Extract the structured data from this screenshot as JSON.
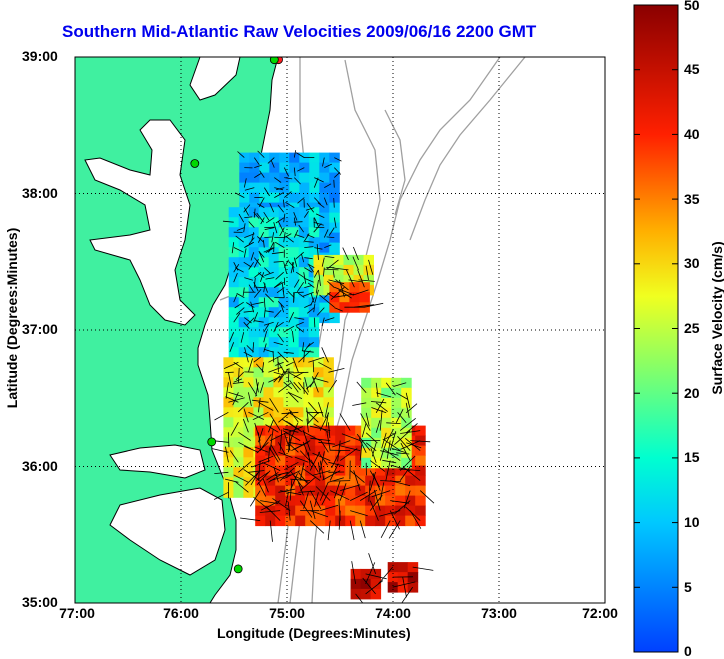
{
  "title": "Southern Mid-Atlantic Raw Velocities 2009/06/16 2200 GMT",
  "x_axis": {
    "label": "Longitude (Degrees:Minutes)",
    "ticks": [
      "77:00",
      "76:00",
      "75:00",
      "74:00",
      "73:00",
      "72:00"
    ]
  },
  "y_axis": {
    "label": "Latitude (Degrees:Minutes)",
    "ticks": [
      "39:00",
      "38:00",
      "37:00",
      "36:00",
      "35:00"
    ]
  },
  "colorbar": {
    "label": "Surface Velocity (cm/s)",
    "ticks": [
      "50",
      "45",
      "40",
      "35",
      "30",
      "25",
      "20",
      "15",
      "10",
      "5",
      "0"
    ],
    "min": 0,
    "max": 50
  },
  "map_extent": {
    "lon": [
      -77,
      -72
    ],
    "lat": [
      35,
      39
    ]
  },
  "colors": {
    "land": "#40f0a0",
    "coastline": "#000000",
    "bathymetry": "#a0a0a0",
    "title": "#0000ee",
    "sites": "#00d800",
    "site_inactive": "#ff2020"
  },
  "sites": [
    {
      "name": "site",
      "lon": -75.87,
      "lat": 38.22,
      "status": "active"
    },
    {
      "name": "site",
      "lon": -75.71,
      "lat": 36.18,
      "status": "active"
    },
    {
      "name": "site",
      "lon": -75.46,
      "lat": 35.25,
      "status": "active"
    },
    {
      "name": "site",
      "lon": -75.08,
      "lat": 38.98,
      "status": "inactive"
    },
    {
      "name": "site",
      "lon": -75.12,
      "lat": 38.98,
      "status": "active"
    }
  ],
  "chart_data": {
    "type": "heatmap",
    "title": "Southern Mid-Atlantic Raw Velocities 2009/06/16 2200 GMT",
    "xlabel": "Longitude (Degrees:Minutes)",
    "ylabel": "Latitude (Degrees:Minutes)",
    "colorbar_label": "Surface Velocity (cm/s)",
    "xlim": [
      -77,
      -72
    ],
    "ylim": [
      35,
      39
    ],
    "clim": [
      0,
      50
    ],
    "grid": true,
    "regions": [
      {
        "lon": [
          -75.45,
          -74.6
        ],
        "lat": [
          37.1,
          38.3
        ],
        "speed": 9
      },
      {
        "lon": [
          -75.55,
          -74.75
        ],
        "lat": [
          36.6,
          37.9
        ],
        "speed": 12
      },
      {
        "lon": [
          -74.75,
          -74.25
        ],
        "lat": [
          37.3,
          37.55
        ],
        "speed": 26
      },
      {
        "lon": [
          -74.6,
          -74.25
        ],
        "lat": [
          37.2,
          37.35
        ],
        "speed": 38
      },
      {
        "lon": [
          -75.6,
          -74.6
        ],
        "lat": [
          35.8,
          36.8
        ],
        "speed": 27
      },
      {
        "lon": [
          -75.3,
          -73.75
        ],
        "lat": [
          35.6,
          36.3
        ],
        "speed": 40
      },
      {
        "lon": [
          -74.3,
          -73.85
        ],
        "lat": [
          36.0,
          36.65
        ],
        "speed": 24
      },
      {
        "lon": [
          -74.4,
          -74.2
        ],
        "lat": [
          35.1,
          35.25
        ],
        "speed": 45
      },
      {
        "lon": [
          -74.05,
          -73.85
        ],
        "lat": [
          35.1,
          35.3
        ],
        "speed": 45
      }
    ]
  }
}
